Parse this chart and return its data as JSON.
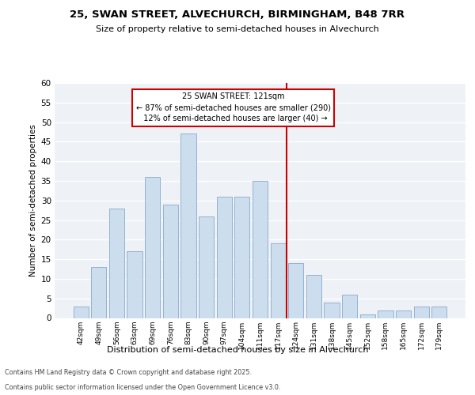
{
  "title1": "25, SWAN STREET, ALVECHURCH, BIRMINGHAM, B48 7RR",
  "title2": "Size of property relative to semi-detached houses in Alvechurch",
  "xlabel": "Distribution of semi-detached houses by size in Alvechurch",
  "ylabel": "Number of semi-detached properties",
  "categories": [
    "42sqm",
    "49sqm",
    "56sqm",
    "63sqm",
    "69sqm",
    "76sqm",
    "83sqm",
    "90sqm",
    "97sqm",
    "104sqm",
    "111sqm",
    "117sqm",
    "124sqm",
    "131sqm",
    "138sqm",
    "145sqm",
    "152sqm",
    "158sqm",
    "165sqm",
    "172sqm",
    "179sqm"
  ],
  "values": [
    3,
    13,
    28,
    17,
    36,
    29,
    47,
    26,
    31,
    31,
    35,
    19,
    14,
    11,
    4,
    6,
    1,
    2,
    2,
    3,
    3
  ],
  "bar_color": "#ccdded",
  "bar_edge_color": "#88aacc",
  "ylim": [
    0,
    60
  ],
  "yticks": [
    0,
    5,
    10,
    15,
    20,
    25,
    30,
    35,
    40,
    45,
    50,
    55,
    60
  ],
  "property_label": "25 SWAN STREET: 121sqm",
  "pct_smaller": 87,
  "count_smaller": 290,
  "pct_larger": 12,
  "count_larger": 40,
  "vline_x": 11.5,
  "box_color": "#cc0000",
  "bg_color": "#eef2f7",
  "footer1": "Contains HM Land Registry data © Crown copyright and database right 2025.",
  "footer2": "Contains public sector information licensed under the Open Government Licence v3.0."
}
